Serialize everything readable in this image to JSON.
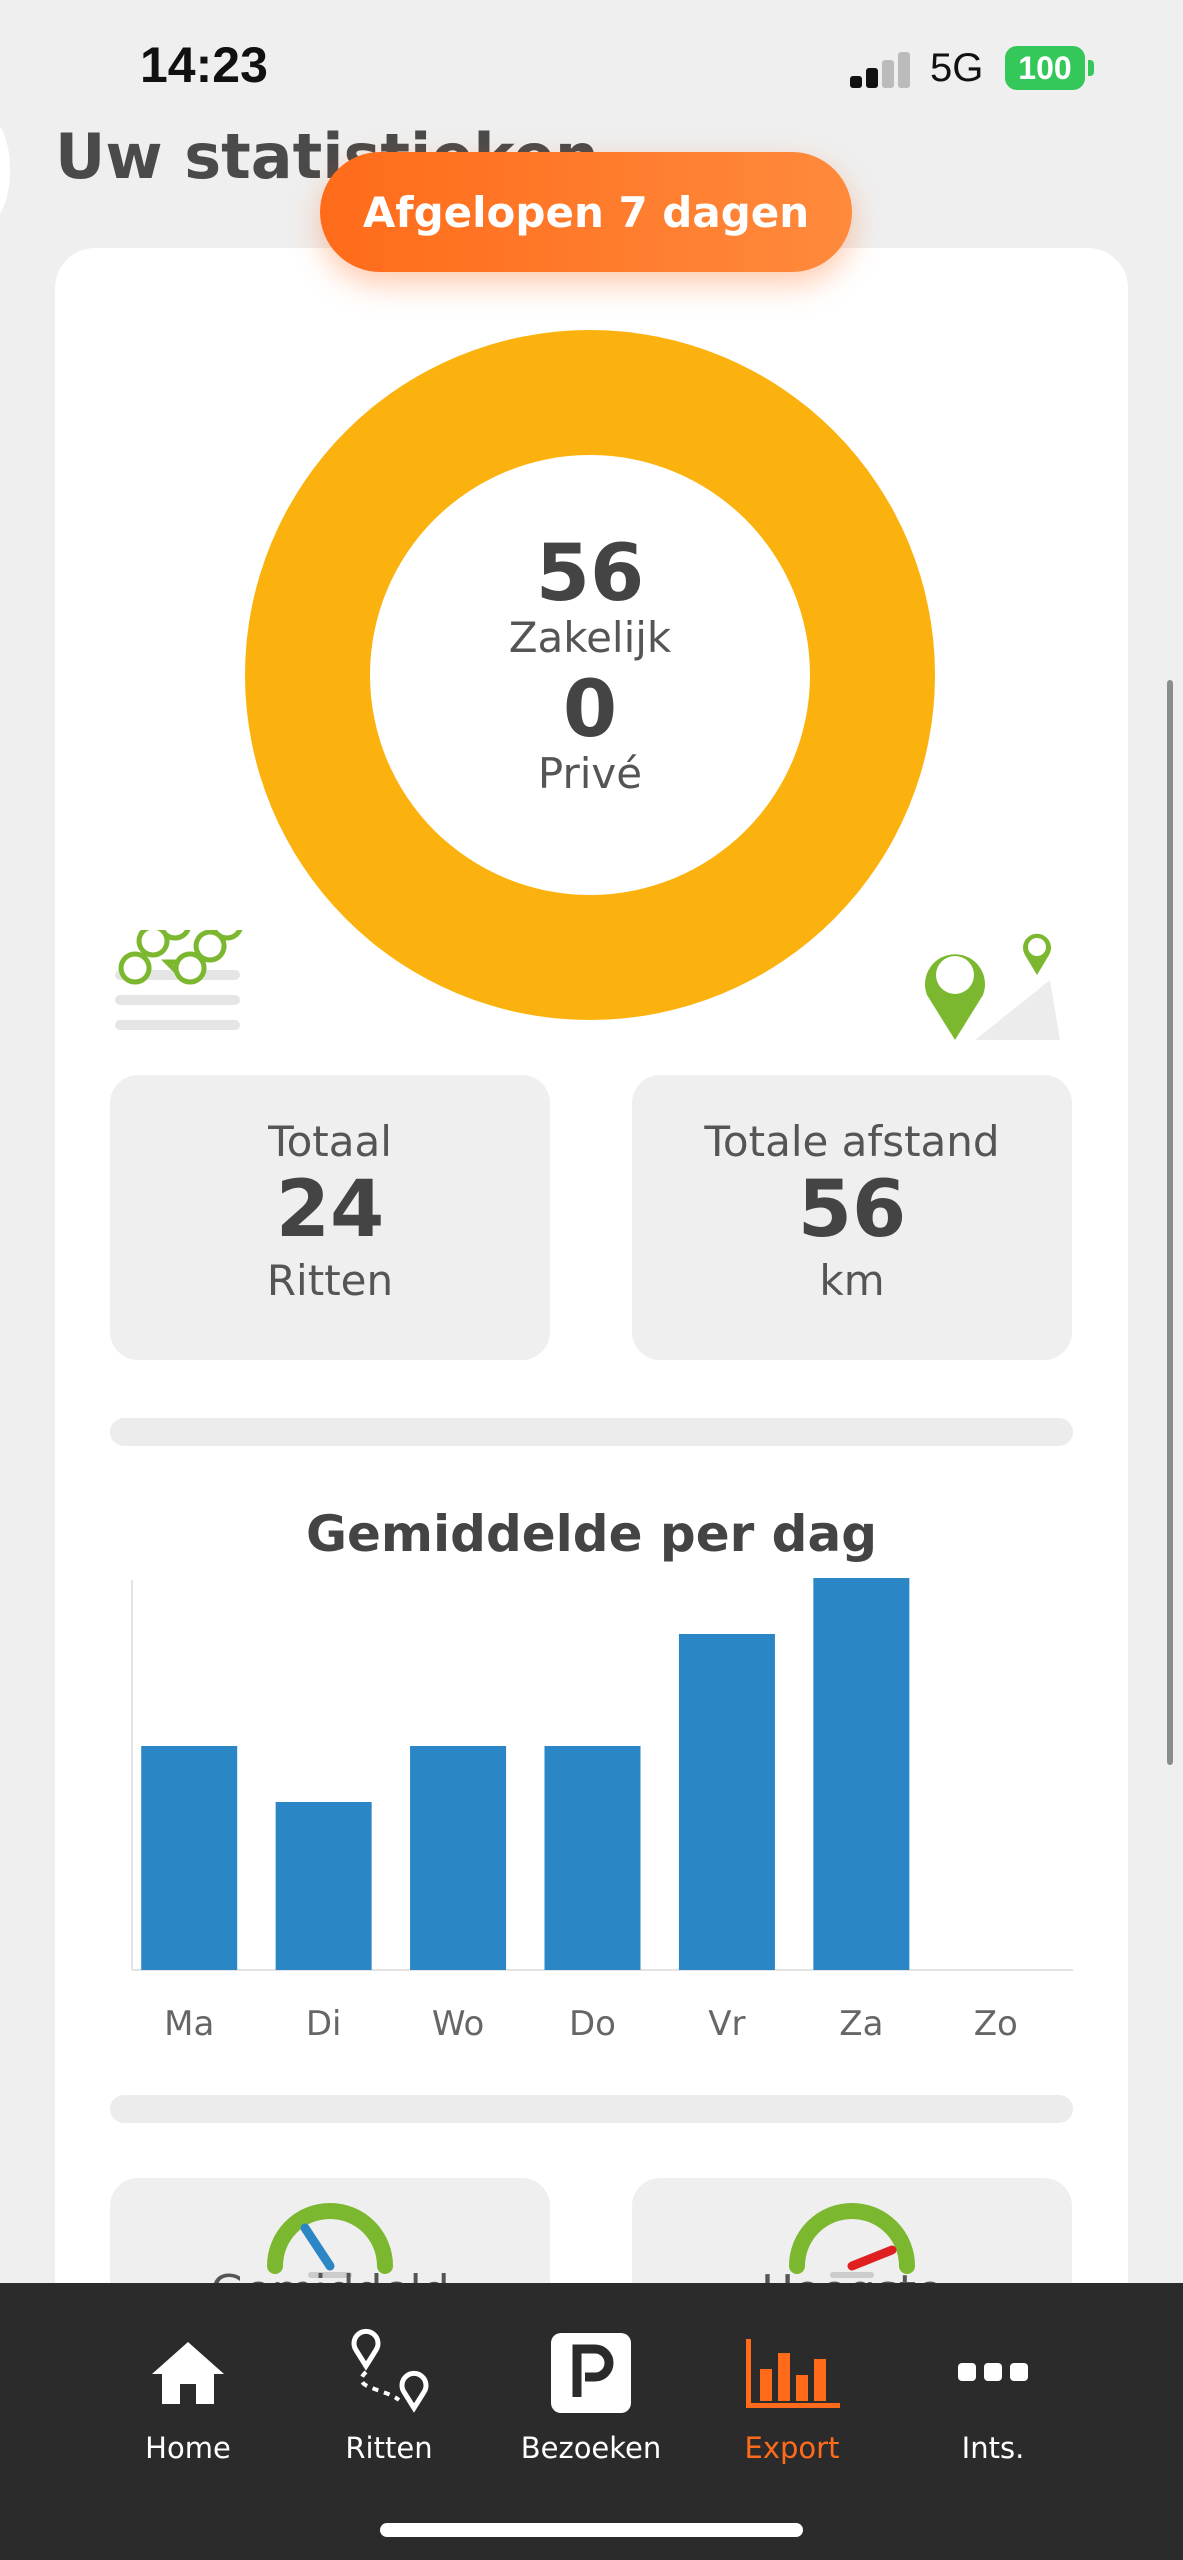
{
  "status_bar": {
    "time": "14:23",
    "network": "5G",
    "battery": "100"
  },
  "page": {
    "title": "Uw statistieken"
  },
  "period": {
    "label": "Afgelopen 7 dagen"
  },
  "donut": {
    "business_value": "56",
    "business_label": "Zakelijk",
    "private_value": "0",
    "private_label": "Privé",
    "color": "#fbb20e"
  },
  "totals": {
    "trips": {
      "title": "Totaal",
      "value": "24",
      "unit": "Ritten"
    },
    "distance": {
      "title": "Totale afstand",
      "value": "56",
      "unit": "km"
    }
  },
  "chart_data": {
    "type": "bar",
    "title": "Gemiddelde per dag",
    "categories": [
      "Ma",
      "Di",
      "Wo",
      "Do",
      "Vr",
      "Za",
      "Zo"
    ],
    "values": [
      4,
      3,
      4,
      4,
      6,
      7,
      0
    ],
    "ylim": [
      0,
      7
    ],
    "color": "#2a86c5",
    "grid": false,
    "legend": "none"
  },
  "gauges": {
    "average_label": "Gemiddeld",
    "max_label": "Hoogste"
  },
  "tabbar": {
    "items": [
      {
        "label": "Home",
        "icon": "home-icon"
      },
      {
        "label": "Ritten",
        "icon": "route-pins-icon"
      },
      {
        "label": "Bezoeken",
        "icon": "parking-icon"
      },
      {
        "label": "Export",
        "icon": "bar-chart-icon"
      },
      {
        "label": "Ints.",
        "icon": "more-dots-icon"
      }
    ],
    "active_color": "#ff6b1a"
  }
}
